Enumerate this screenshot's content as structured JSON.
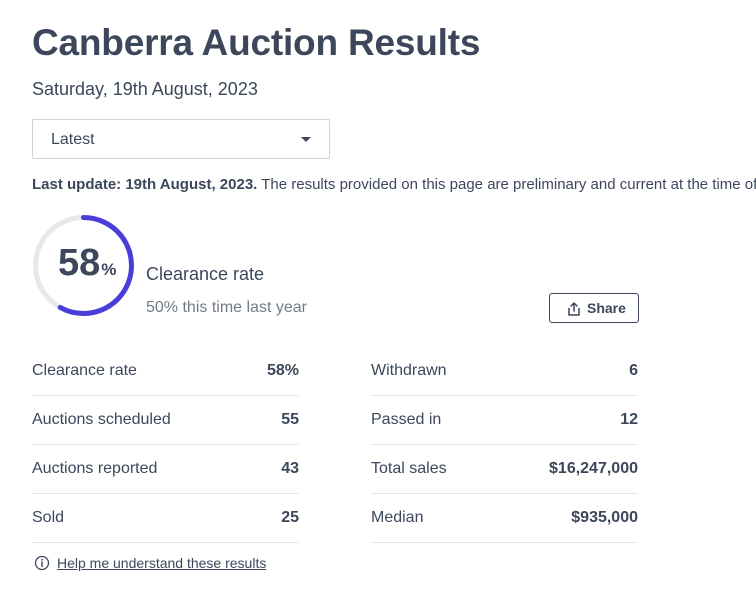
{
  "header": {
    "title": "Canberra Auction Results",
    "date": "Saturday, 19th August, 2023"
  },
  "filter": {
    "selected": "Latest"
  },
  "update": {
    "label": "Last update: 19th August, 2023.",
    "text": " The results provided on this page are preliminary and current at the time of publishing."
  },
  "gauge": {
    "value": "58",
    "unit": "%",
    "fraction": 0.58,
    "label": "Clearance rate",
    "last_year": "50% this time last year",
    "color": "#4a3ed9",
    "track_color": "#e6e8ec"
  },
  "share": {
    "label": "Share",
    "icon": "share-icon"
  },
  "stats_left": [
    {
      "label": "Clearance rate",
      "value": "58%"
    },
    {
      "label": "Auctions scheduled",
      "value": "55"
    },
    {
      "label": "Auctions reported",
      "value": "43"
    },
    {
      "label": "Sold",
      "value": "25"
    }
  ],
  "stats_right": [
    {
      "label": "Withdrawn",
      "value": "6"
    },
    {
      "label": "Passed in",
      "value": "12"
    },
    {
      "label": "Total sales",
      "value": "$16,247,000"
    },
    {
      "label": "Median",
      "value": "$935,000"
    }
  ],
  "help": {
    "label": "Help me understand these results",
    "icon": "info-icon"
  }
}
